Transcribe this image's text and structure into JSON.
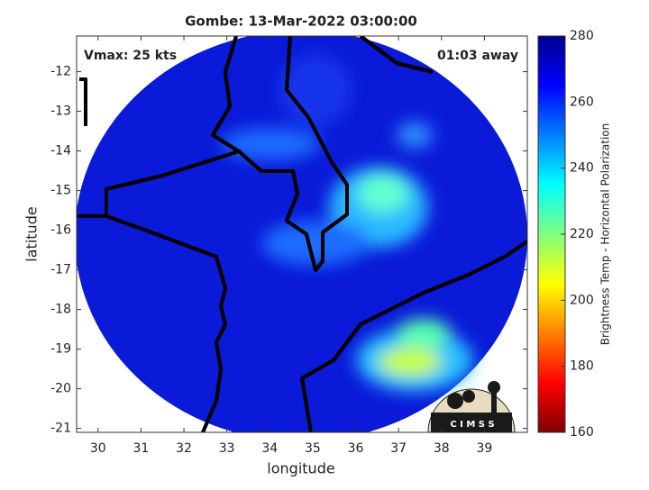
{
  "chart_data": {
    "type": "map",
    "title": "Gombe: 13-Mar-2022 03:00:00",
    "x_label": "longitude",
    "y_label": "latitude",
    "annotations": [
      "Vmax: 25 kts",
      "01:03 away"
    ],
    "logo_text": "C I M S S",
    "xlim": [
      29.5,
      40
    ],
    "xticks": [
      30,
      31,
      32,
      33,
      34,
      35,
      36,
      37,
      38,
      39
    ],
    "ylim": [
      -21.1,
      -11.1
    ],
    "yticks": [
      -21,
      -20,
      -19,
      -18,
      -17,
      -16,
      -15,
      -14,
      -13,
      -12
    ],
    "colorbar_label": "Brightness Temp - Horizontal Polarization",
    "clim": [
      160,
      280
    ],
    "cticks": [
      160,
      180,
      200,
      220,
      240,
      260,
      280
    ],
    "colormap": [
      "#7f0000",
      "#ff0000",
      "#ff8000",
      "#ffff00",
      "#80ff80",
      "#00ffff",
      "#0080ff",
      "#0000ff",
      "#00008f"
    ]
  }
}
